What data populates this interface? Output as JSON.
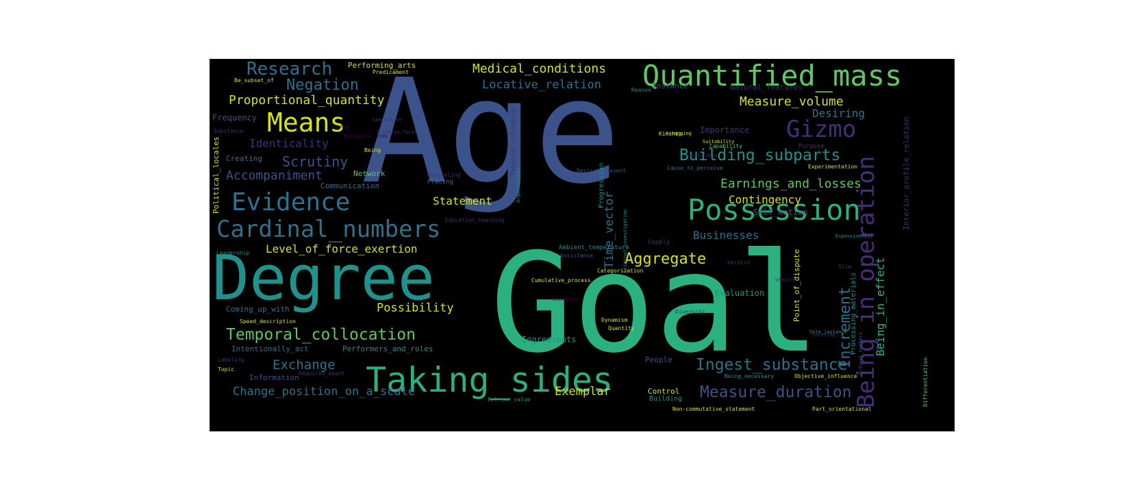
{
  "palette": {
    "background": "#000000",
    "yellow": "#d8e219",
    "lightgreen": "#5ec962",
    "green": "#2bb07f",
    "teal": "#21918c",
    "bluegrey": "#2c728e",
    "blue": "#3b528b",
    "purple": "#472d7b",
    "darkpurple": "#440154"
  },
  "words": [
    {
      "text": "Age",
      "color": "blue"
    },
    {
      "text": "Goal",
      "color": "green"
    },
    {
      "text": "Degree",
      "color": "teal"
    },
    {
      "text": "Quantified_mass",
      "color": "lightgreen"
    },
    {
      "text": "Taking_sides",
      "color": "green"
    },
    {
      "text": "Being_in_operation",
      "color": "purple"
    },
    {
      "text": "Possession",
      "color": "green"
    },
    {
      "text": "Cardinal_numbers",
      "color": "bluegrey"
    },
    {
      "text": "Evidence",
      "color": "bluegrey"
    },
    {
      "text": "Means",
      "color": "yellow"
    },
    {
      "text": "Gizmo",
      "color": "purple"
    },
    {
      "text": "Research",
      "color": "bluegrey"
    },
    {
      "text": "Temporal_collocation",
      "color": "lightgreen"
    },
    {
      "text": "Ingest_substance",
      "color": "bluegrey"
    },
    {
      "text": "Measure_duration",
      "color": "blue"
    },
    {
      "text": "Building_subparts",
      "color": "teal"
    },
    {
      "text": "Increment",
      "color": "bluegrey"
    },
    {
      "text": "Aggregate",
      "color": "yellow"
    },
    {
      "text": "Negation",
      "color": "bluegrey"
    },
    {
      "text": "Medical_conditions",
      "color": "yellow"
    },
    {
      "text": "Proportional_quantity",
      "color": "yellow"
    },
    {
      "text": "Measure_volume",
      "color": "yellow"
    },
    {
      "text": "Earnings_and_losses",
      "color": "lightgreen"
    },
    {
      "text": "Scrutiny",
      "color": "blue"
    },
    {
      "text": "Accompaniment",
      "color": "blue"
    },
    {
      "text": "Locative_relation",
      "color": "bluegrey"
    },
    {
      "text": "Being_in_effect",
      "color": "green"
    },
    {
      "text": "Time_vector",
      "color": "bluegrey"
    },
    {
      "text": "Change_position_on_a_scale",
      "color": "bluegrey"
    },
    {
      "text": "Exchange",
      "color": "bluegrey"
    },
    {
      "text": "Exemplar",
      "color": "yellow"
    },
    {
      "text": "Possibility",
      "color": "yellow"
    },
    {
      "text": "Level_of_force_exertion",
      "color": "yellow"
    },
    {
      "text": "Identicality",
      "color": "purple"
    },
    {
      "text": "Contingency",
      "color": "yellow"
    },
    {
      "text": "Businesses",
      "color": "bluegrey"
    },
    {
      "text": "Statement",
      "color": "yellow"
    },
    {
      "text": "Desiring",
      "color": "bluegrey"
    },
    {
      "text": "Interior_profile_relation",
      "color": "purple"
    },
    {
      "text": "Point_of_dispute",
      "color": "yellow"
    },
    {
      "text": "Processing_materials",
      "color": "teal"
    },
    {
      "text": "Political_locales",
      "color": "yellow"
    },
    {
      "text": "Performing_arts",
      "color": "yellow"
    },
    {
      "text": "Natural_features",
      "color": "purple"
    },
    {
      "text": "Frequency",
      "color": "blue"
    },
    {
      "text": "Coming_up_with",
      "color": "bluegrey"
    },
    {
      "text": "Intentionally_act",
      "color": "bluegrey"
    },
    {
      "text": "Performers_and_roles",
      "color": "teal"
    },
    {
      "text": "Information",
      "color": "blue"
    },
    {
      "text": "Communication",
      "color": "bluegrey"
    },
    {
      "text": "Network",
      "color": "lightgreen"
    },
    {
      "text": "Creating",
      "color": "bluegrey"
    },
    {
      "text": "Ingredients",
      "color": "teal"
    },
    {
      "text": "Evaluation",
      "color": "teal"
    },
    {
      "text": "Self_motion",
      "color": "blue"
    },
    {
      "text": "Importance",
      "color": "purple"
    },
    {
      "text": "Progression",
      "color": "teal"
    },
    {
      "text": "Temporal_subregion",
      "color": "purple"
    },
    {
      "text": "Instance",
      "color": "blue"
    },
    {
      "text": "Reason",
      "color": "teal"
    },
    {
      "text": "Predicament",
      "color": "yellow"
    },
    {
      "text": "Be_subset_of",
      "color": "yellow"
    },
    {
      "text": "Capability",
      "color": "lightgreen"
    },
    {
      "text": "Suitability",
      "color": "yellow"
    },
    {
      "text": "Purpose",
      "color": "purple"
    },
    {
      "text": "Cause_to_perceive",
      "color": "bluegrey"
    },
    {
      "text": "Experimentation",
      "color": "yellow"
    },
    {
      "text": "Placing",
      "color": "bluegrey"
    },
    {
      "text": "Quarreling",
      "color": "purple"
    },
    {
      "text": "Organization",
      "color": "teal"
    },
    {
      "text": "Ambient_temperature",
      "color": "teal"
    },
    {
      "text": "Assistance",
      "color": "blue"
    },
    {
      "text": "Supply",
      "color": "purple"
    },
    {
      "text": "Categorization",
      "color": "yellow"
    },
    {
      "text": "Cumulative_process",
      "color": "yellow"
    },
    {
      "text": "Criminal_investigation",
      "color": "teal"
    },
    {
      "text": "Desirable_event",
      "color": "blue"
    },
    {
      "text": "Verdict",
      "color": "purple"
    },
    {
      "text": "Diversity",
      "color": "purple"
    },
    {
      "text": "Dynamism",
      "color": "yellow"
    },
    {
      "text": "Quantity",
      "color": "yellow"
    },
    {
      "text": "Speed_description",
      "color": "yellow"
    },
    {
      "text": "Labeling",
      "color": "purple"
    },
    {
      "text": "Topic",
      "color": "yellow"
    },
    {
      "text": "Required_event",
      "color": "purple"
    },
    {
      "text": "People",
      "color": "blue"
    },
    {
      "text": "Building",
      "color": "teal"
    },
    {
      "text": "Control",
      "color": "yellow"
    },
    {
      "text": "Extreme_value",
      "color": "teal"
    },
    {
      "text": "Non-commutative_statement",
      "color": "yellow"
    },
    {
      "text": "Part_orientational",
      "color": "yellow"
    },
    {
      "text": "Being_necessary",
      "color": "teal"
    },
    {
      "text": "Objective_influence",
      "color": "yellow"
    },
    {
      "text": "Differentiation",
      "color": "lightgreen"
    },
    {
      "text": "Leadership",
      "color": "teal"
    },
    {
      "text": "Substance",
      "color": "purple"
    },
    {
      "text": "Being",
      "color": "yellow"
    },
    {
      "text": "Kinship",
      "color": "yellow"
    },
    {
      "text": "Education_teaching",
      "color": "purple"
    },
    {
      "text": "Size",
      "color": "purple"
    },
    {
      "text": "Expensiveness",
      "color": "teal"
    },
    {
      "text": "Ordinal_numbers",
      "color": "blue"
    },
    {
      "text": "Sole_instance",
      "color": "teal"
    },
    {
      "text": "Arranging",
      "color": "yellow"
    },
    {
      "text": "Vehicle",
      "color": "purple"
    },
    {
      "text": "Residence",
      "color": "darkpurple"
    },
    {
      "text": "Concessive",
      "color": "purple"
    },
    {
      "text": "Usefulness",
      "color": "purple"
    },
    {
      "text": "Stimulus_focus",
      "color": "purple"
    },
    {
      "text": "Chance",
      "color": "darkpurple"
    },
    {
      "text": "Biological_area",
      "color": "darkpurple"
    },
    {
      "text": "Quitting",
      "color": "purple"
    }
  ]
}
